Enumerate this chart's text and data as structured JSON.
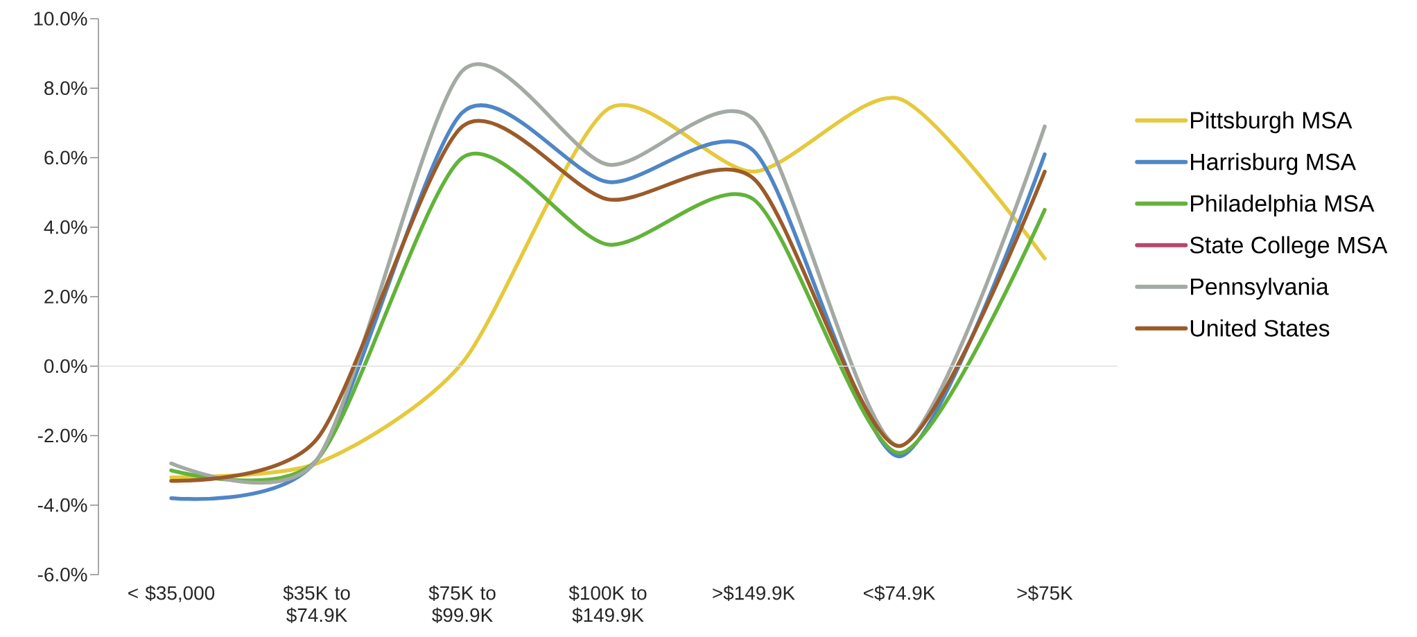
{
  "chart_data": {
    "type": "line",
    "categories": [
      "< $35,000",
      "$35K to $74.9K",
      "$75K to $99.9K",
      "$100K to $149.9K",
      ">$149.9K",
      "<$74.9K",
      ">$75K"
    ],
    "ylim": [
      -6,
      10
    ],
    "yticks": [
      {
        "value": -6,
        "label": "-6.0%"
      },
      {
        "value": -4,
        "label": "-4.0%"
      },
      {
        "value": -2,
        "label": "-2.0%"
      },
      {
        "value": 0,
        "label": "0.0%"
      },
      {
        "value": 2,
        "label": "2.0%"
      },
      {
        "value": 4,
        "label": "4.0%"
      },
      {
        "value": 6,
        "label": "6.0%"
      },
      {
        "value": 8,
        "label": "8.0%"
      },
      {
        "value": 10,
        "label": "10.0%"
      }
    ],
    "legend": "right",
    "grid": false,
    "ref_lines": [
      {
        "axis": "y",
        "value": 0,
        "color": "#e0e0e0"
      }
    ],
    "series": [
      {
        "name": "Pittsburgh MSA",
        "color": "#e6c93c",
        "values": [
          -3.2,
          -2.8,
          0.1,
          7.4,
          5.6,
          7.7,
          3.1
        ]
      },
      {
        "name": "Harrisburg MSA",
        "color": "#4f86c6",
        "values": [
          -3.8,
          -2.7,
          7.3,
          5.3,
          6.2,
          -2.6,
          6.1
        ]
      },
      {
        "name": "Philadelphia MSA",
        "color": "#62b33a",
        "values": [
          -3.0,
          -2.7,
          6.0,
          3.5,
          4.8,
          -2.5,
          4.5
        ]
      },
      {
        "name": "State College MSA",
        "color": "#b5486f",
        "values": [
          null,
          null,
          null,
          null,
          null,
          null,
          null
        ]
      },
      {
        "name": "Pennsylvania",
        "color": "#a3aaa3",
        "values": [
          -2.8,
          -2.7,
          8.5,
          5.8,
          7.1,
          -2.3,
          6.9
        ]
      },
      {
        "name": "United States",
        "color": "#9a5b2a",
        "values": [
          -3.3,
          -2.1,
          6.9,
          4.8,
          5.4,
          -2.3,
          5.6
        ]
      }
    ]
  }
}
